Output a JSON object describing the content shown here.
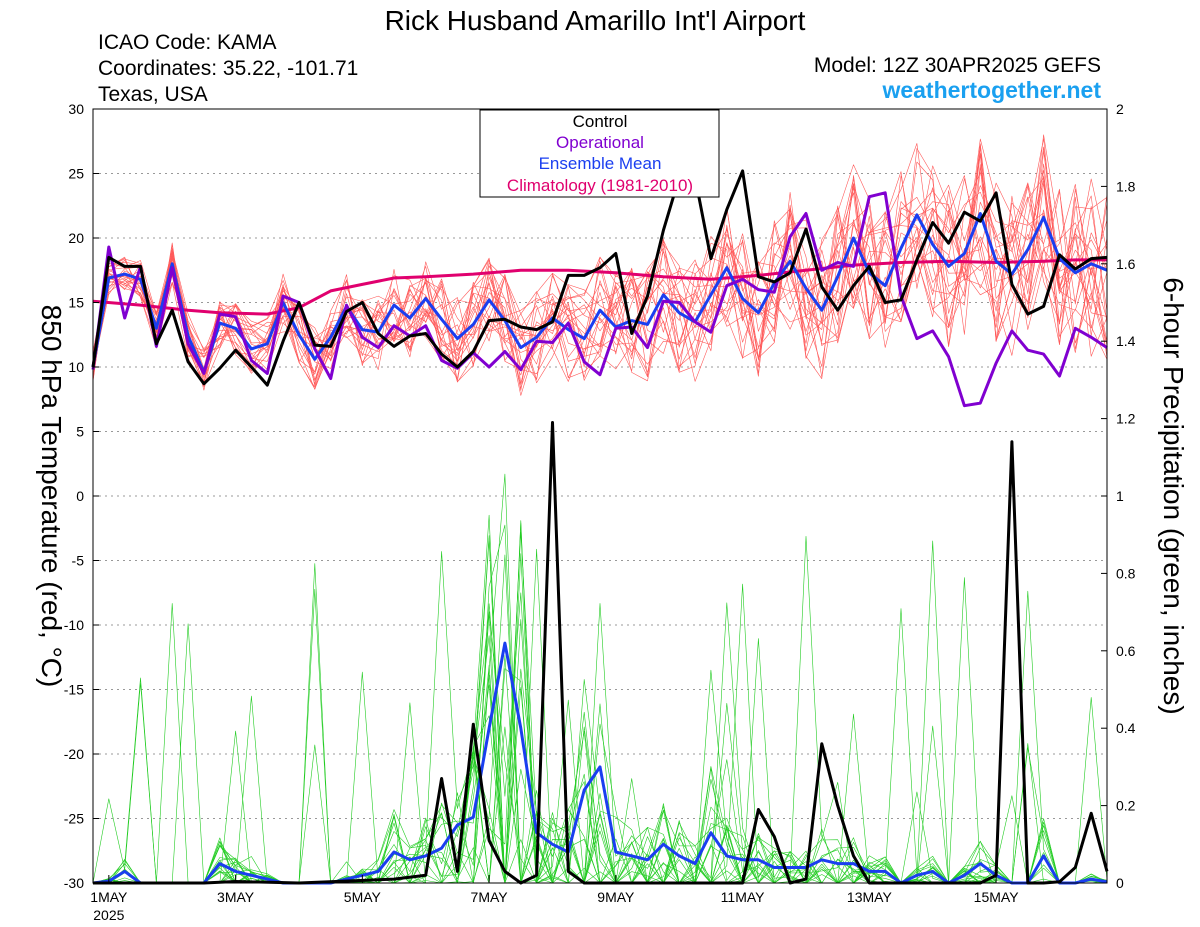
{
  "header": {
    "title": "Rick Husband Amarillo Int'l Airport",
    "icao": "ICAO Code: KAMA",
    "coords": "Coordinates: 35.22, -101.71",
    "region": "Texas, USA",
    "model": "Model: 12Z 30APR2025 GEFS",
    "brand": "weathertogether.net"
  },
  "legend": [
    {
      "label": "Control",
      "color": "#000000"
    },
    {
      "label": "Operational",
      "color": "#8000d0"
    },
    {
      "label": "Ensemble Mean",
      "color": "#1a3ef0"
    },
    {
      "label": "Climatology (1981-2010)",
      "color": "#e0006e"
    }
  ],
  "colors": {
    "members_temp": "#ff5a5a",
    "members_precip": "#22cc22",
    "control": "#000000",
    "operational": "#8000d0",
    "mean": "#1a3ef0",
    "climatology": "#e0006e",
    "brand": "#1aa0f0"
  },
  "chart_data": {
    "type": "line",
    "ylabel": "850 hPa Temperature (red, °C)",
    "y2label": "6-hour Precipitation (green, inches)",
    "ylim": [
      -30,
      30
    ],
    "y2lim": [
      0,
      2
    ],
    "yticks": [
      30,
      25,
      20,
      15,
      10,
      5,
      0,
      -5,
      -10,
      -15,
      -20,
      -25,
      -30
    ],
    "y2ticks": [
      2,
      1.8,
      1.6,
      1.4,
      1.2,
      1,
      0.8,
      0.6,
      0.4,
      0.2,
      0
    ],
    "xticks": [
      {
        "day": 1,
        "label": "1MAY",
        "sub": "2025"
      },
      {
        "day": 3,
        "label": "3MAY"
      },
      {
        "day": 5,
        "label": "5MAY"
      },
      {
        "day": 7,
        "label": "7MAY"
      },
      {
        "day": 9,
        "label": "9MAY"
      },
      {
        "day": 11,
        "label": "11MAY"
      },
      {
        "day": 13,
        "label": "13MAY"
      },
      {
        "day": 15,
        "label": "15MAY"
      }
    ],
    "xrange": [
      0.75,
      16.75
    ],
    "grid": true,
    "legend_position": "top-center",
    "temp_control": [
      [
        0.75,
        10
      ],
      [
        1,
        18.5
      ],
      [
        1.25,
        17.8
      ],
      [
        1.5,
        17.8
      ],
      [
        1.75,
        11.8
      ],
      [
        2,
        14.4
      ],
      [
        2.25,
        10.4
      ],
      [
        2.5,
        8.7
      ],
      [
        2.75,
        9.9
      ],
      [
        3,
        11.3
      ],
      [
        3.25,
        10
      ],
      [
        3.5,
        8.6
      ],
      [
        3.75,
        12
      ],
      [
        4,
        15
      ],
      [
        4.25,
        11.7
      ],
      [
        4.5,
        11.6
      ],
      [
        4.75,
        14.3
      ],
      [
        5,
        15
      ],
      [
        5.25,
        12.6
      ],
      [
        5.5,
        11.6
      ],
      [
        5.75,
        12.4
      ],
      [
        6,
        12.6
      ],
      [
        6.25,
        11
      ],
      [
        6.5,
        10
      ],
      [
        6.75,
        11.2
      ],
      [
        7,
        13.6
      ],
      [
        7.25,
        13.7
      ],
      [
        7.5,
        13.1
      ],
      [
        7.75,
        12.9
      ],
      [
        8,
        13.5
      ],
      [
        8.25,
        17.1
      ],
      [
        8.5,
        17.1
      ],
      [
        8.75,
        17.7
      ],
      [
        9,
        18.8
      ],
      [
        9.25,
        12.6
      ],
      [
        9.5,
        15.5
      ],
      [
        9.75,
        20.6
      ],
      [
        10,
        24.7
      ],
      [
        10.25,
        24.7
      ],
      [
        10.5,
        18.4
      ],
      [
        10.75,
        22.2
      ],
      [
        11,
        25.2
      ],
      [
        11.25,
        17
      ],
      [
        11.5,
        16.6
      ],
      [
        11.75,
        17.3
      ],
      [
        12,
        20.7
      ],
      [
        12.25,
        16.2
      ],
      [
        12.5,
        14.4
      ],
      [
        12.75,
        16.3
      ],
      [
        13,
        17.8
      ],
      [
        13.25,
        15
      ],
      [
        13.5,
        15.2
      ],
      [
        13.75,
        18.3
      ],
      [
        14,
        21.2
      ],
      [
        14.25,
        19.6
      ],
      [
        14.5,
        22
      ],
      [
        14.75,
        21.3
      ],
      [
        15,
        23.5
      ],
      [
        15.25,
        16.4
      ],
      [
        15.5,
        14.1
      ],
      [
        15.75,
        14.7
      ],
      [
        16,
        18.7
      ],
      [
        16.25,
        17.6
      ],
      [
        16.5,
        18.4
      ],
      [
        16.75,
        18.5
      ]
    ],
    "temp_operational": [
      [
        0.75,
        9.8
      ],
      [
        1,
        19.3
      ],
      [
        1.25,
        13.8
      ],
      [
        1.5,
        17.8
      ],
      [
        1.75,
        11.6
      ],
      [
        2,
        17.7
      ],
      [
        2.25,
        11.8
      ],
      [
        2.5,
        9.5
      ],
      [
        2.75,
        14.1
      ],
      [
        3,
        13.9
      ],
      [
        3.25,
        10.5
      ],
      [
        3.5,
        9.5
      ],
      [
        3.75,
        15.5
      ],
      [
        4,
        15
      ],
      [
        4.25,
        11.4
      ],
      [
        4.5,
        9.1
      ],
      [
        4.75,
        14.8
      ],
      [
        5,
        12.3
      ],
      [
        5.25,
        11.5
      ],
      [
        5.5,
        13.2
      ],
      [
        5.75,
        12.4
      ],
      [
        6,
        13.2
      ],
      [
        6.25,
        10.5
      ],
      [
        6.5,
        9.9
      ],
      [
        6.75,
        11.1
      ],
      [
        7,
        10
      ],
      [
        7.25,
        11.2
      ],
      [
        7.5,
        9.8
      ],
      [
        7.75,
        12
      ],
      [
        8,
        11.9
      ],
      [
        8.25,
        13.4
      ],
      [
        8.5,
        10.4
      ],
      [
        8.75,
        9.4
      ],
      [
        9,
        13
      ],
      [
        9.25,
        13.1
      ],
      [
        9.5,
        11.5
      ],
      [
        9.75,
        15.1
      ],
      [
        10,
        15
      ],
      [
        10.25,
        13.5
      ],
      [
        10.5,
        12.7
      ],
      [
        10.75,
        16.3
      ],
      [
        11,
        16.8
      ],
      [
        11.25,
        16
      ],
      [
        11.5,
        15.8
      ],
      [
        11.75,
        20.1
      ],
      [
        12,
        21.9
      ],
      [
        12.25,
        17.5
      ],
      [
        12.5,
        18.1
      ],
      [
        12.75,
        17.8
      ],
      [
        13,
        23.2
      ],
      [
        13.25,
        23.5
      ],
      [
        13.5,
        15.5
      ],
      [
        13.75,
        12.2
      ],
      [
        14,
        12.8
      ],
      [
        14.25,
        10.8
      ],
      [
        14.5,
        7
      ],
      [
        14.75,
        7.2
      ],
      [
        15,
        10.3
      ],
      [
        15.25,
        12.8
      ],
      [
        15.5,
        11.3
      ],
      [
        15.75,
        11
      ],
      [
        16,
        9.3
      ],
      [
        16.25,
        13
      ],
      [
        16.5,
        12.3
      ],
      [
        16.75,
        11.5
      ]
    ],
    "temp_mean": [
      [
        0.75,
        10
      ],
      [
        1,
        16.9
      ],
      [
        1.25,
        17.2
      ],
      [
        1.5,
        16.8
      ],
      [
        1.75,
        13
      ],
      [
        2,
        18
      ],
      [
        2.25,
        12.4
      ],
      [
        2.5,
        9.6
      ],
      [
        2.75,
        13.4
      ],
      [
        3,
        13
      ],
      [
        3.25,
        11.4
      ],
      [
        3.5,
        11.8
      ],
      [
        3.75,
        15
      ],
      [
        4,
        12.5
      ],
      [
        4.25,
        10.6
      ],
      [
        4.5,
        12.3
      ],
      [
        4.75,
        14.7
      ],
      [
        5,
        12.9
      ],
      [
        5.25,
        12.7
      ],
      [
        5.5,
        14.8
      ],
      [
        5.75,
        13.8
      ],
      [
        6,
        15.3
      ],
      [
        6.25,
        13.7
      ],
      [
        6.5,
        12.2
      ],
      [
        6.75,
        13.3
      ],
      [
        7,
        15.2
      ],
      [
        7.25,
        13.6
      ],
      [
        7.5,
        11.5
      ],
      [
        7.75,
        12.3
      ],
      [
        8,
        13.8
      ],
      [
        8.25,
        12.9
      ],
      [
        8.5,
        12.2
      ],
      [
        8.75,
        14.4
      ],
      [
        9,
        13.1
      ],
      [
        9.25,
        13.6
      ],
      [
        9.5,
        13.3
      ],
      [
        9.75,
        15.6
      ],
      [
        10,
        14.2
      ],
      [
        10.25,
        13.5
      ],
      [
        10.5,
        15.6
      ],
      [
        10.75,
        17.7
      ],
      [
        11,
        15.3
      ],
      [
        11.25,
        14.2
      ],
      [
        11.5,
        16.5
      ],
      [
        11.75,
        18.2
      ],
      [
        12,
        16.1
      ],
      [
        12.25,
        14.4
      ],
      [
        12.5,
        17
      ],
      [
        12.75,
        20
      ],
      [
        13,
        17.3
      ],
      [
        13.25,
        16.3
      ],
      [
        13.5,
        19.2
      ],
      [
        13.75,
        21.8
      ],
      [
        14,
        19.5
      ],
      [
        14.25,
        17.8
      ],
      [
        14.5,
        18.8
      ],
      [
        14.75,
        21.9
      ],
      [
        15,
        18.2
      ],
      [
        15.25,
        17.2
      ],
      [
        15.5,
        19.1
      ],
      [
        15.75,
        21.6
      ],
      [
        16,
        18.4
      ],
      [
        16.25,
        17.3
      ],
      [
        16.5,
        18
      ],
      [
        16.75,
        17.5
      ]
    ],
    "temp_climatology": [
      [
        0.75,
        15.1
      ],
      [
        1.5,
        14.8
      ],
      [
        2.25,
        14.4
      ],
      [
        2.75,
        14.2
      ],
      [
        3.5,
        14.1
      ],
      [
        4,
        14.6
      ],
      [
        4.5,
        15.9
      ],
      [
        5,
        16.4
      ],
      [
        5.5,
        16.9
      ],
      [
        6,
        17
      ],
      [
        6.75,
        17.2
      ],
      [
        7.5,
        17.5
      ],
      [
        8.25,
        17.5
      ],
      [
        9,
        17.3
      ],
      [
        9.75,
        17
      ],
      [
        10.5,
        16.8
      ],
      [
        11.25,
        17.1
      ],
      [
        12,
        17.5
      ],
      [
        12.75,
        17.9
      ],
      [
        13.5,
        18.1
      ],
      [
        14.25,
        18.2
      ],
      [
        15,
        18.1
      ],
      [
        15.75,
        18.2
      ],
      [
        16.25,
        18.3
      ],
      [
        16.75,
        18.3
      ]
    ],
    "precip_control": [
      [
        0.75,
        0
      ],
      [
        2.5,
        0
      ],
      [
        3,
        0.004
      ],
      [
        4,
        0
      ],
      [
        5.5,
        0.01
      ],
      [
        6,
        0.02
      ],
      [
        6.25,
        0.27
      ],
      [
        6.5,
        0.03
      ],
      [
        6.75,
        0.41
      ],
      [
        7,
        0.11
      ],
      [
        7.25,
        0.03
      ],
      [
        7.5,
        0
      ],
      [
        7.75,
        0.02
      ],
      [
        8,
        1.19
      ],
      [
        8.25,
        0.03
      ],
      [
        8.5,
        0
      ],
      [
        9.5,
        0
      ],
      [
        10.5,
        0
      ],
      [
        11,
        0
      ],
      [
        11.25,
        0.19
      ],
      [
        11.5,
        0.12
      ],
      [
        11.75,
        0
      ],
      [
        12,
        0.01
      ],
      [
        12.25,
        0.36
      ],
      [
        12.5,
        0.2
      ],
      [
        12.75,
        0.07
      ],
      [
        13,
        0
      ],
      [
        14,
        0
      ],
      [
        14.75,
        0
      ],
      [
        15,
        0.02
      ],
      [
        15.25,
        1.14
      ],
      [
        15.5,
        0
      ],
      [
        15.75,
        0
      ],
      [
        16,
        0.003
      ],
      [
        16.25,
        0.04
      ],
      [
        16.5,
        0.18
      ],
      [
        16.75,
        0.03
      ]
    ],
    "precip_mean": [
      [
        0.75,
        0
      ],
      [
        1,
        0.005
      ],
      [
        1.25,
        0.03
      ],
      [
        1.5,
        0
      ],
      [
        2.5,
        0
      ],
      [
        2.75,
        0.05
      ],
      [
        3,
        0.03
      ],
      [
        3.25,
        0.02
      ],
      [
        3.5,
        0.01
      ],
      [
        3.75,
        0
      ],
      [
        4.5,
        0
      ],
      [
        4.75,
        0.01
      ],
      [
        5,
        0.02
      ],
      [
        5.25,
        0.03
      ],
      [
        5.5,
        0.08
      ],
      [
        5.75,
        0.06
      ],
      [
        6,
        0.07
      ],
      [
        6.25,
        0.09
      ],
      [
        6.5,
        0.15
      ],
      [
        6.75,
        0.17
      ],
      [
        7,
        0.4
      ],
      [
        7.25,
        0.62
      ],
      [
        7.5,
        0.4
      ],
      [
        7.75,
        0.13
      ],
      [
        8,
        0.1
      ],
      [
        8.25,
        0.08
      ],
      [
        8.5,
        0.24
      ],
      [
        8.75,
        0.3
      ],
      [
        9,
        0.08
      ],
      [
        9.25,
        0.07
      ],
      [
        9.5,
        0.06
      ],
      [
        9.75,
        0.1
      ],
      [
        10,
        0.07
      ],
      [
        10.25,
        0.05
      ],
      [
        10.5,
        0.13
      ],
      [
        10.75,
        0.07
      ],
      [
        11,
        0.06
      ],
      [
        11.25,
        0.06
      ],
      [
        11.5,
        0.04
      ],
      [
        11.75,
        0.04
      ],
      [
        12,
        0.04
      ],
      [
        12.25,
        0.06
      ],
      [
        12.5,
        0.05
      ],
      [
        12.75,
        0.05
      ],
      [
        13,
        0.03
      ],
      [
        13.25,
        0.03
      ],
      [
        13.5,
        0
      ],
      [
        13.75,
        0.02
      ],
      [
        14,
        0.03
      ],
      [
        14.25,
        0
      ],
      [
        14.5,
        0.02
      ],
      [
        14.75,
        0.05
      ],
      [
        15,
        0.02
      ],
      [
        15.25,
        0
      ],
      [
        15.5,
        0
      ],
      [
        15.75,
        0.07
      ],
      [
        16,
        0
      ],
      [
        16.25,
        0
      ],
      [
        16.5,
        0.01
      ],
      [
        16.75,
        0.003
      ]
    ]
  }
}
